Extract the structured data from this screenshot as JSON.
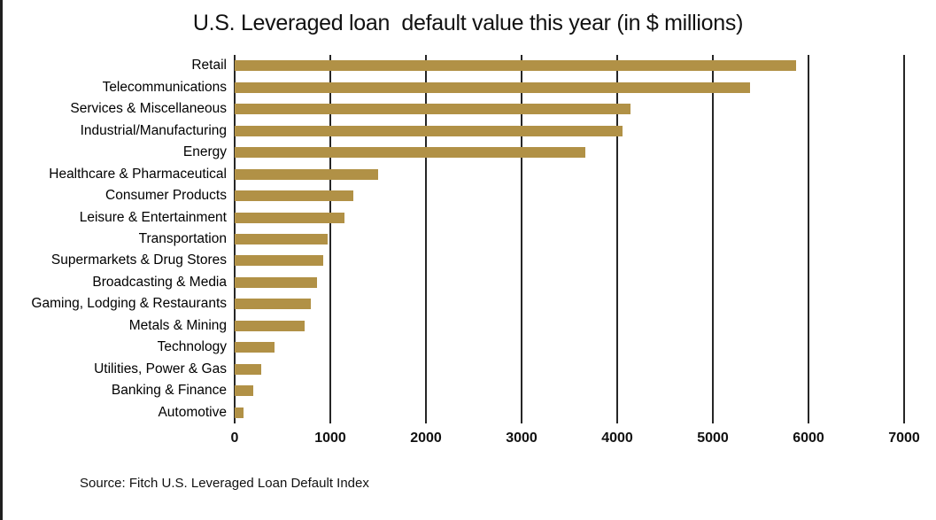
{
  "chart_data": {
    "type": "bar",
    "orientation": "horizontal",
    "title": "U.S. Leveraged loan  default value this year (in $ millions)",
    "categories": [
      "Retail",
      "Telecommunications",
      "Services & Miscellaneous",
      "Industrial/Manufacturing",
      "Energy",
      "Healthcare & Pharmaceutical",
      "Consumer Products",
      "Leisure & Entertainment",
      "Transportation",
      "Supermarkets & Drug Stores",
      "Broadcasting & Media",
      "Gaming, Lodging & Restaurants",
      "Metals & Mining",
      "Technology",
      "Utilities, Power & Gas",
      "Banking & Finance",
      "Automotive"
    ],
    "values": [
      5870,
      5390,
      4140,
      4060,
      3670,
      1500,
      1240,
      1150,
      970,
      930,
      860,
      800,
      730,
      420,
      280,
      190,
      90
    ],
    "xlabel": "",
    "ylabel": "",
    "xlim": [
      0,
      7000
    ],
    "x_ticks": [
      0,
      1000,
      2000,
      3000,
      4000,
      5000,
      6000,
      7000
    ],
    "grid": true,
    "legend": false,
    "bar_color": "#B19146",
    "gridline_color": "#262626",
    "source": "Source: Fitch U.S. Leveraged Loan Default Index"
  }
}
